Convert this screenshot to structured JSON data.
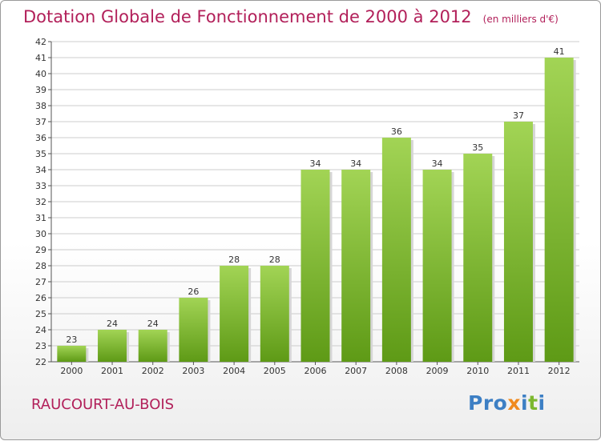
{
  "header": {
    "title": "Dotation Globale de Fonctionnement de 2000 à 2012",
    "unit": "(en milliers d'€)"
  },
  "footer": {
    "commune": "RAUCOURT-AU-BOIS",
    "logo": "Proxiti"
  },
  "colors": {
    "title": "#b2205a",
    "bar_top": "#a2d455",
    "bar_bottom": "#5e9a16",
    "grid": "#cccccc",
    "logo_letters": [
      "#3d7fc4",
      "#3d7fc4",
      "#3d7fc4",
      "#f08a1e",
      "#3d7fc4",
      "#7cb82f",
      "#3d7fc4"
    ]
  },
  "chart_data": {
    "type": "bar",
    "title": "Dotation Globale de Fonctionnement de 2000 à 2012",
    "subtitle": "(en milliers d'€)",
    "categories": [
      "2000",
      "2001",
      "2002",
      "2003",
      "2004",
      "2005",
      "2006",
      "2007",
      "2008",
      "2009",
      "2010",
      "2011",
      "2012"
    ],
    "values": [
      23,
      24,
      24,
      26,
      28,
      28,
      34,
      34,
      36,
      34,
      35,
      37,
      41
    ],
    "ylim": [
      22,
      42
    ],
    "yticks": [
      22,
      23,
      24,
      25,
      26,
      27,
      28,
      29,
      30,
      31,
      32,
      33,
      34,
      35,
      36,
      37,
      38,
      39,
      40,
      41,
      42
    ],
    "grid": true,
    "data_labels": true
  }
}
